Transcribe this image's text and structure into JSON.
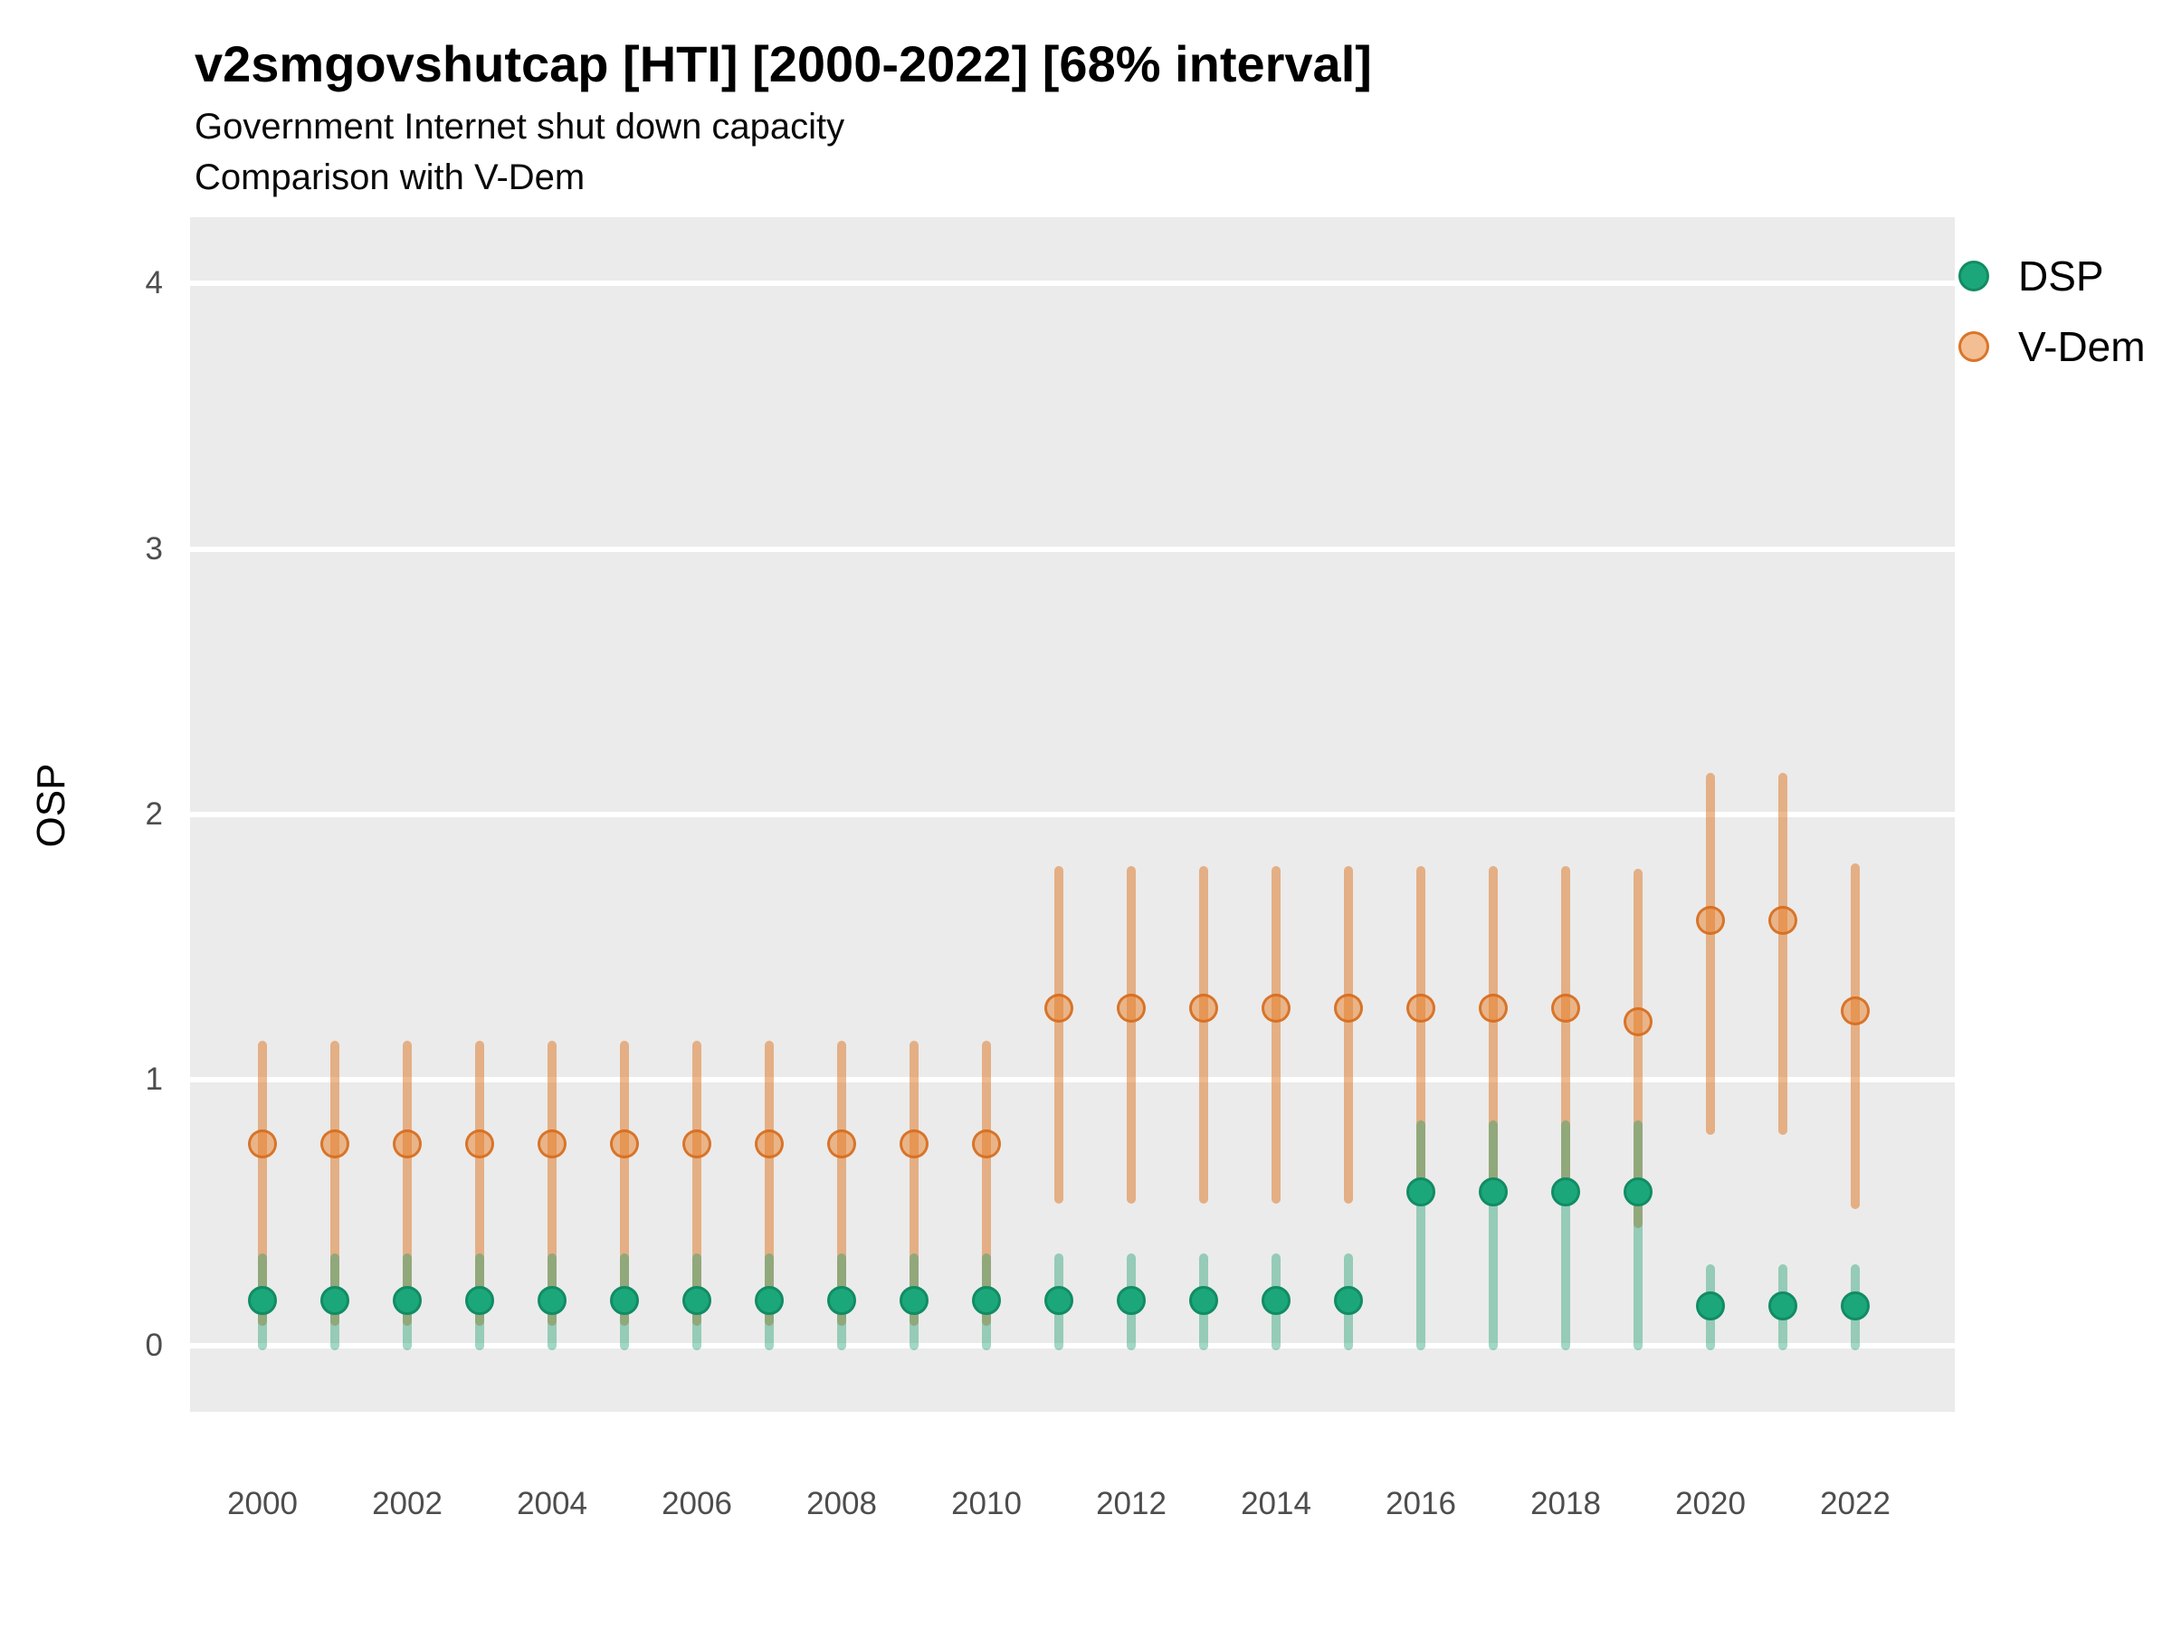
{
  "header": {
    "title": "v2smgovshutcap [HTI] [2000-2022] [68% interval]",
    "subtitle1": "Government Internet shut down capacity",
    "subtitle2": "Comparison with V-Dem"
  },
  "ylabel": "OSP",
  "legend": {
    "items": [
      {
        "label": "DSP",
        "swatch": "green-dot"
      },
      {
        "label": "V-Dem",
        "swatch": "orange-dot"
      }
    ]
  },
  "colors": {
    "panel_bg": "#ebebeb",
    "grid": "#ffffff",
    "dsp_point_fill": "#1ca77a",
    "dsp_point_stroke": "#118c64",
    "dsp_bar": "rgba(30,160,112,0.42)",
    "vdem_point_fill": "rgba(232,126,38,0.50)",
    "vdem_point_stroke": "rgba(214,108,28,0.88)",
    "vdem_bar": "rgba(221,115,30,0.50)",
    "tick_text": "#4d4d4d"
  },
  "chart_data": {
    "type": "scatter",
    "title": "v2smgovshutcap [HTI] [2000-2022] [68% interval]",
    "subtitle": [
      "Government Internet shut down capacity",
      "Comparison with V-Dem"
    ],
    "xlabel": "",
    "ylabel": "OSP",
    "interval_note": "68% interval shown as vertical ranges",
    "grid": "horizontal major gridlines, white on gray panel",
    "legend_position": "right-top",
    "x": [
      2000,
      2001,
      2002,
      2003,
      2004,
      2005,
      2006,
      2007,
      2008,
      2009,
      2010,
      2011,
      2012,
      2013,
      2014,
      2015,
      2016,
      2017,
      2018,
      2019,
      2020,
      2021,
      2022
    ],
    "xticks": [
      2000,
      2002,
      2004,
      2006,
      2008,
      2010,
      2012,
      2014,
      2016,
      2018,
      2020,
      2022
    ],
    "yticks": [
      0,
      1,
      2,
      3,
      4
    ],
    "xlim": [
      1999,
      2023.375
    ],
    "ylim": [
      -0.25,
      4.25
    ],
    "series": [
      {
        "name": "DSP",
        "values": [
          0.17,
          0.17,
          0.17,
          0.17,
          0.17,
          0.17,
          0.17,
          0.17,
          0.17,
          0.17,
          0.17,
          0.17,
          0.17,
          0.17,
          0.17,
          0.17,
          0.58,
          0.58,
          0.58,
          0.58,
          0.15,
          0.15,
          0.15
        ],
        "lo": [
          0.0,
          0.0,
          0.0,
          0.0,
          0.0,
          0.0,
          0.0,
          0.0,
          0.0,
          0.0,
          0.0,
          0.0,
          0.0,
          0.0,
          0.0,
          0.0,
          0.0,
          0.0,
          0.0,
          0.0,
          0.0,
          0.0,
          0.0
        ],
        "hi": [
          0.33,
          0.33,
          0.33,
          0.33,
          0.33,
          0.33,
          0.33,
          0.33,
          0.33,
          0.33,
          0.33,
          0.33,
          0.33,
          0.33,
          0.33,
          0.33,
          0.83,
          0.83,
          0.83,
          0.83,
          0.29,
          0.29,
          0.29
        ]
      },
      {
        "name": "V-Dem",
        "values": [
          0.76,
          0.76,
          0.76,
          0.76,
          0.76,
          0.76,
          0.76,
          0.76,
          0.76,
          0.76,
          0.76,
          1.27,
          1.27,
          1.27,
          1.27,
          1.27,
          1.27,
          1.27,
          1.27,
          1.22,
          1.6,
          1.6,
          1.26
        ],
        "lo": [
          0.09,
          0.09,
          0.09,
          0.09,
          0.09,
          0.09,
          0.09,
          0.09,
          0.09,
          0.09,
          0.09,
          0.55,
          0.55,
          0.55,
          0.55,
          0.55,
          0.55,
          0.55,
          0.55,
          0.46,
          0.81,
          0.81,
          0.53
        ],
        "hi": [
          1.13,
          1.13,
          1.13,
          1.13,
          1.13,
          1.13,
          1.13,
          1.13,
          1.13,
          1.13,
          1.13,
          1.79,
          1.79,
          1.79,
          1.79,
          1.79,
          1.79,
          1.79,
          1.79,
          1.78,
          2.14,
          2.14,
          1.8
        ]
      }
    ]
  }
}
